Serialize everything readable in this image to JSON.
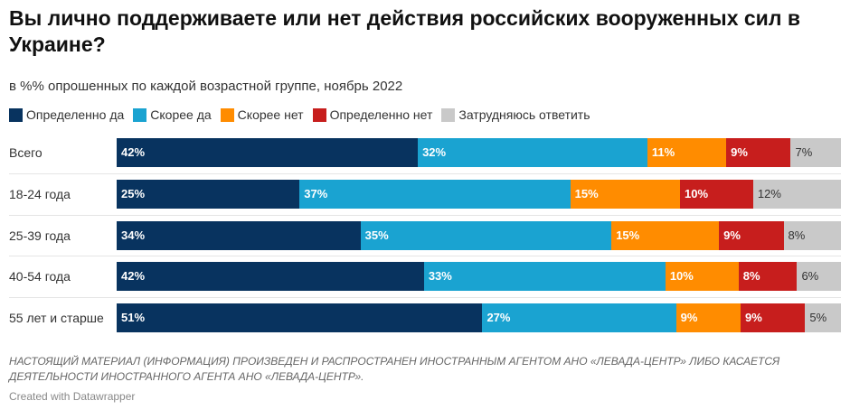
{
  "chart_data": {
    "type": "bar",
    "stacked": true,
    "orientation": "horizontal",
    "title": "Вы лично поддерживаете или нет действия российских вооруженных сил в Украине?",
    "subtitle": "в %% опрошенных по каждой возрастной группе, ноябрь 2022",
    "legend_position": "top",
    "categories": [
      "Всего",
      "18-24 года",
      "25-39 года",
      "40-54 года",
      "55 лет и старше"
    ],
    "series": [
      {
        "name": "Определенно да",
        "color": "#08335f",
        "values": [
          42,
          25,
          34,
          42,
          51
        ]
      },
      {
        "name": "Скорее да",
        "color": "#1aa3d1",
        "values": [
          32,
          37,
          35,
          33,
          27
        ]
      },
      {
        "name": "Скорее нет",
        "color": "#ff8c00",
        "values": [
          11,
          15,
          15,
          10,
          9
        ]
      },
      {
        "name": "Определенно нет",
        "color": "#c71e1d",
        "values": [
          9,
          10,
          9,
          8,
          9
        ]
      },
      {
        "name": "Затрудняюсь ответить",
        "color": "#c9c9c9",
        "values": [
          7,
          12,
          8,
          6,
          5
        ]
      }
    ],
    "value_suffix": "%"
  },
  "footer": {
    "note": "НАСТОЯЩИЙ МАТЕРИАЛ (ИНФОРМАЦИЯ) ПРОИЗВЕДЕН И РАСПРОСТРАНЕН ИНОСТРАННЫМ АГЕНТОМ АНО «ЛЕВАДА-ЦЕНТР» ЛИБО КАСАЕТСЯ ДЕЯТЕЛЬНОСТИ ИНОСТРАННОГО АГЕНТА АНО «ЛЕВАДА-ЦЕНТР».",
    "credit": "Created with Datawrapper"
  }
}
